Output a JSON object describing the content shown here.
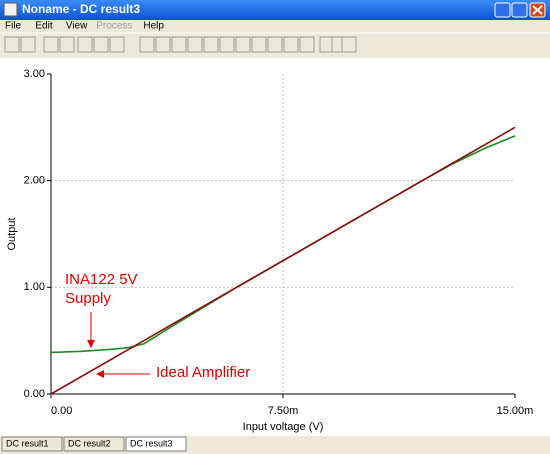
{
  "window": {
    "title": "Noname - DC result3",
    "menu": [
      "File",
      "Edit",
      "View",
      "Process",
      "Help"
    ],
    "tabs": [
      "DC result1",
      "DC result2",
      "DC result3"
    ]
  },
  "chart_data": {
    "type": "line",
    "x_label": "Input voltage (V)",
    "y_label": "Output",
    "x": [
      0,
      0.001,
      0.002,
      0.0025,
      0.003,
      0.004,
      0.006,
      0.008,
      0.01,
      0.012,
      0.013,
      0.014,
      0.015
    ],
    "series": [
      {
        "name": "INA122 5V Supply",
        "color": "#1f8a1f",
        "values": [
          0.39,
          0.4,
          0.42,
          0.435,
          0.47,
          0.65,
          1.0,
          1.333,
          1.667,
          2.0,
          2.16,
          2.3,
          2.42
        ]
      },
      {
        "name": "Ideal Amplifier",
        "color": "#8b0a0a",
        "values": [
          0,
          0.167,
          0.333,
          0.417,
          0.5,
          0.667,
          1.0,
          1.333,
          1.667,
          2.0,
          2.167,
          2.333,
          2.5
        ]
      }
    ],
    "xlim": [
      0,
      0.015
    ],
    "xticks": [
      {
        "value": 0,
        "label": "0.00"
      },
      {
        "value": 0.0075,
        "label": "7.50m"
      },
      {
        "value": 0.015,
        "label": "15.00m"
      }
    ],
    "ylim": [
      0,
      3
    ],
    "yticks": [
      {
        "value": 0,
        "label": "0.00"
      },
      {
        "value": 1,
        "label": "1.00"
      },
      {
        "value": 2,
        "label": "2.00"
      },
      {
        "value": 3,
        "label": "3.00"
      }
    ],
    "grid": true
  }
}
